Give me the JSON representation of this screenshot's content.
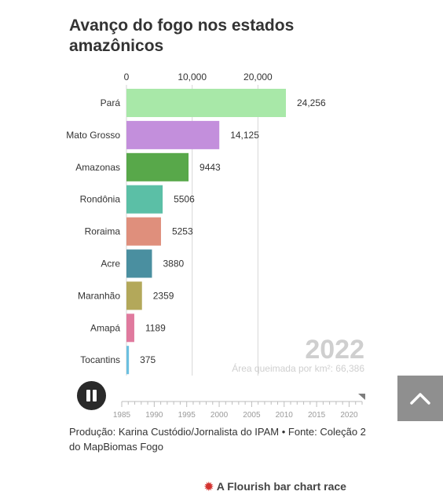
{
  "title": "Avanço do fogo nos estados amazônicos",
  "year": "2022",
  "subtitle": "Área queimada por km²: 66,386",
  "credits": "Produção: Karina Custódio/Jornalista do IPAM • Fonte: Coleção 2 do MapBiomas Fogo",
  "flourish_label": "A Flourish bar chart race",
  "pause_icon": "pause-icon",
  "scroll_icon": "chevron-up-icon",
  "chart_data": {
    "type": "bar",
    "orientation": "horizontal",
    "x_ticks": [
      "0",
      "10,000",
      "20,000"
    ],
    "xlim": [
      0,
      24256
    ],
    "categories": [
      "Pará",
      "Mato Grosso",
      "Amazonas",
      "Rondônia",
      "Roraima",
      "Acre",
      "Maranhão",
      "Amapá",
      "Tocantins"
    ],
    "values": [
      24256,
      14125,
      9443,
      5506,
      5253,
      3880,
      2359,
      1189,
      375
    ],
    "value_labels": [
      "24,256",
      "14,125",
      "9443",
      "5506",
      "5253",
      "3880",
      "2359",
      "1189",
      "375"
    ],
    "colors": [
      "#a8e8a8",
      "#c38fdc",
      "#58a84a",
      "#5bbfa6",
      "#df8f7c",
      "#4a8fa0",
      "#b3a85a",
      "#e07a9e",
      "#6cc0e0"
    ],
    "gridlines": [
      0,
      10000,
      20000
    ],
    "timeline": {
      "ticks": [
        "1985",
        "1990",
        "1995",
        "2000",
        "2005",
        "2010",
        "2015",
        "2020"
      ],
      "start": 1985,
      "end": 2022,
      "current": 2022
    }
  }
}
